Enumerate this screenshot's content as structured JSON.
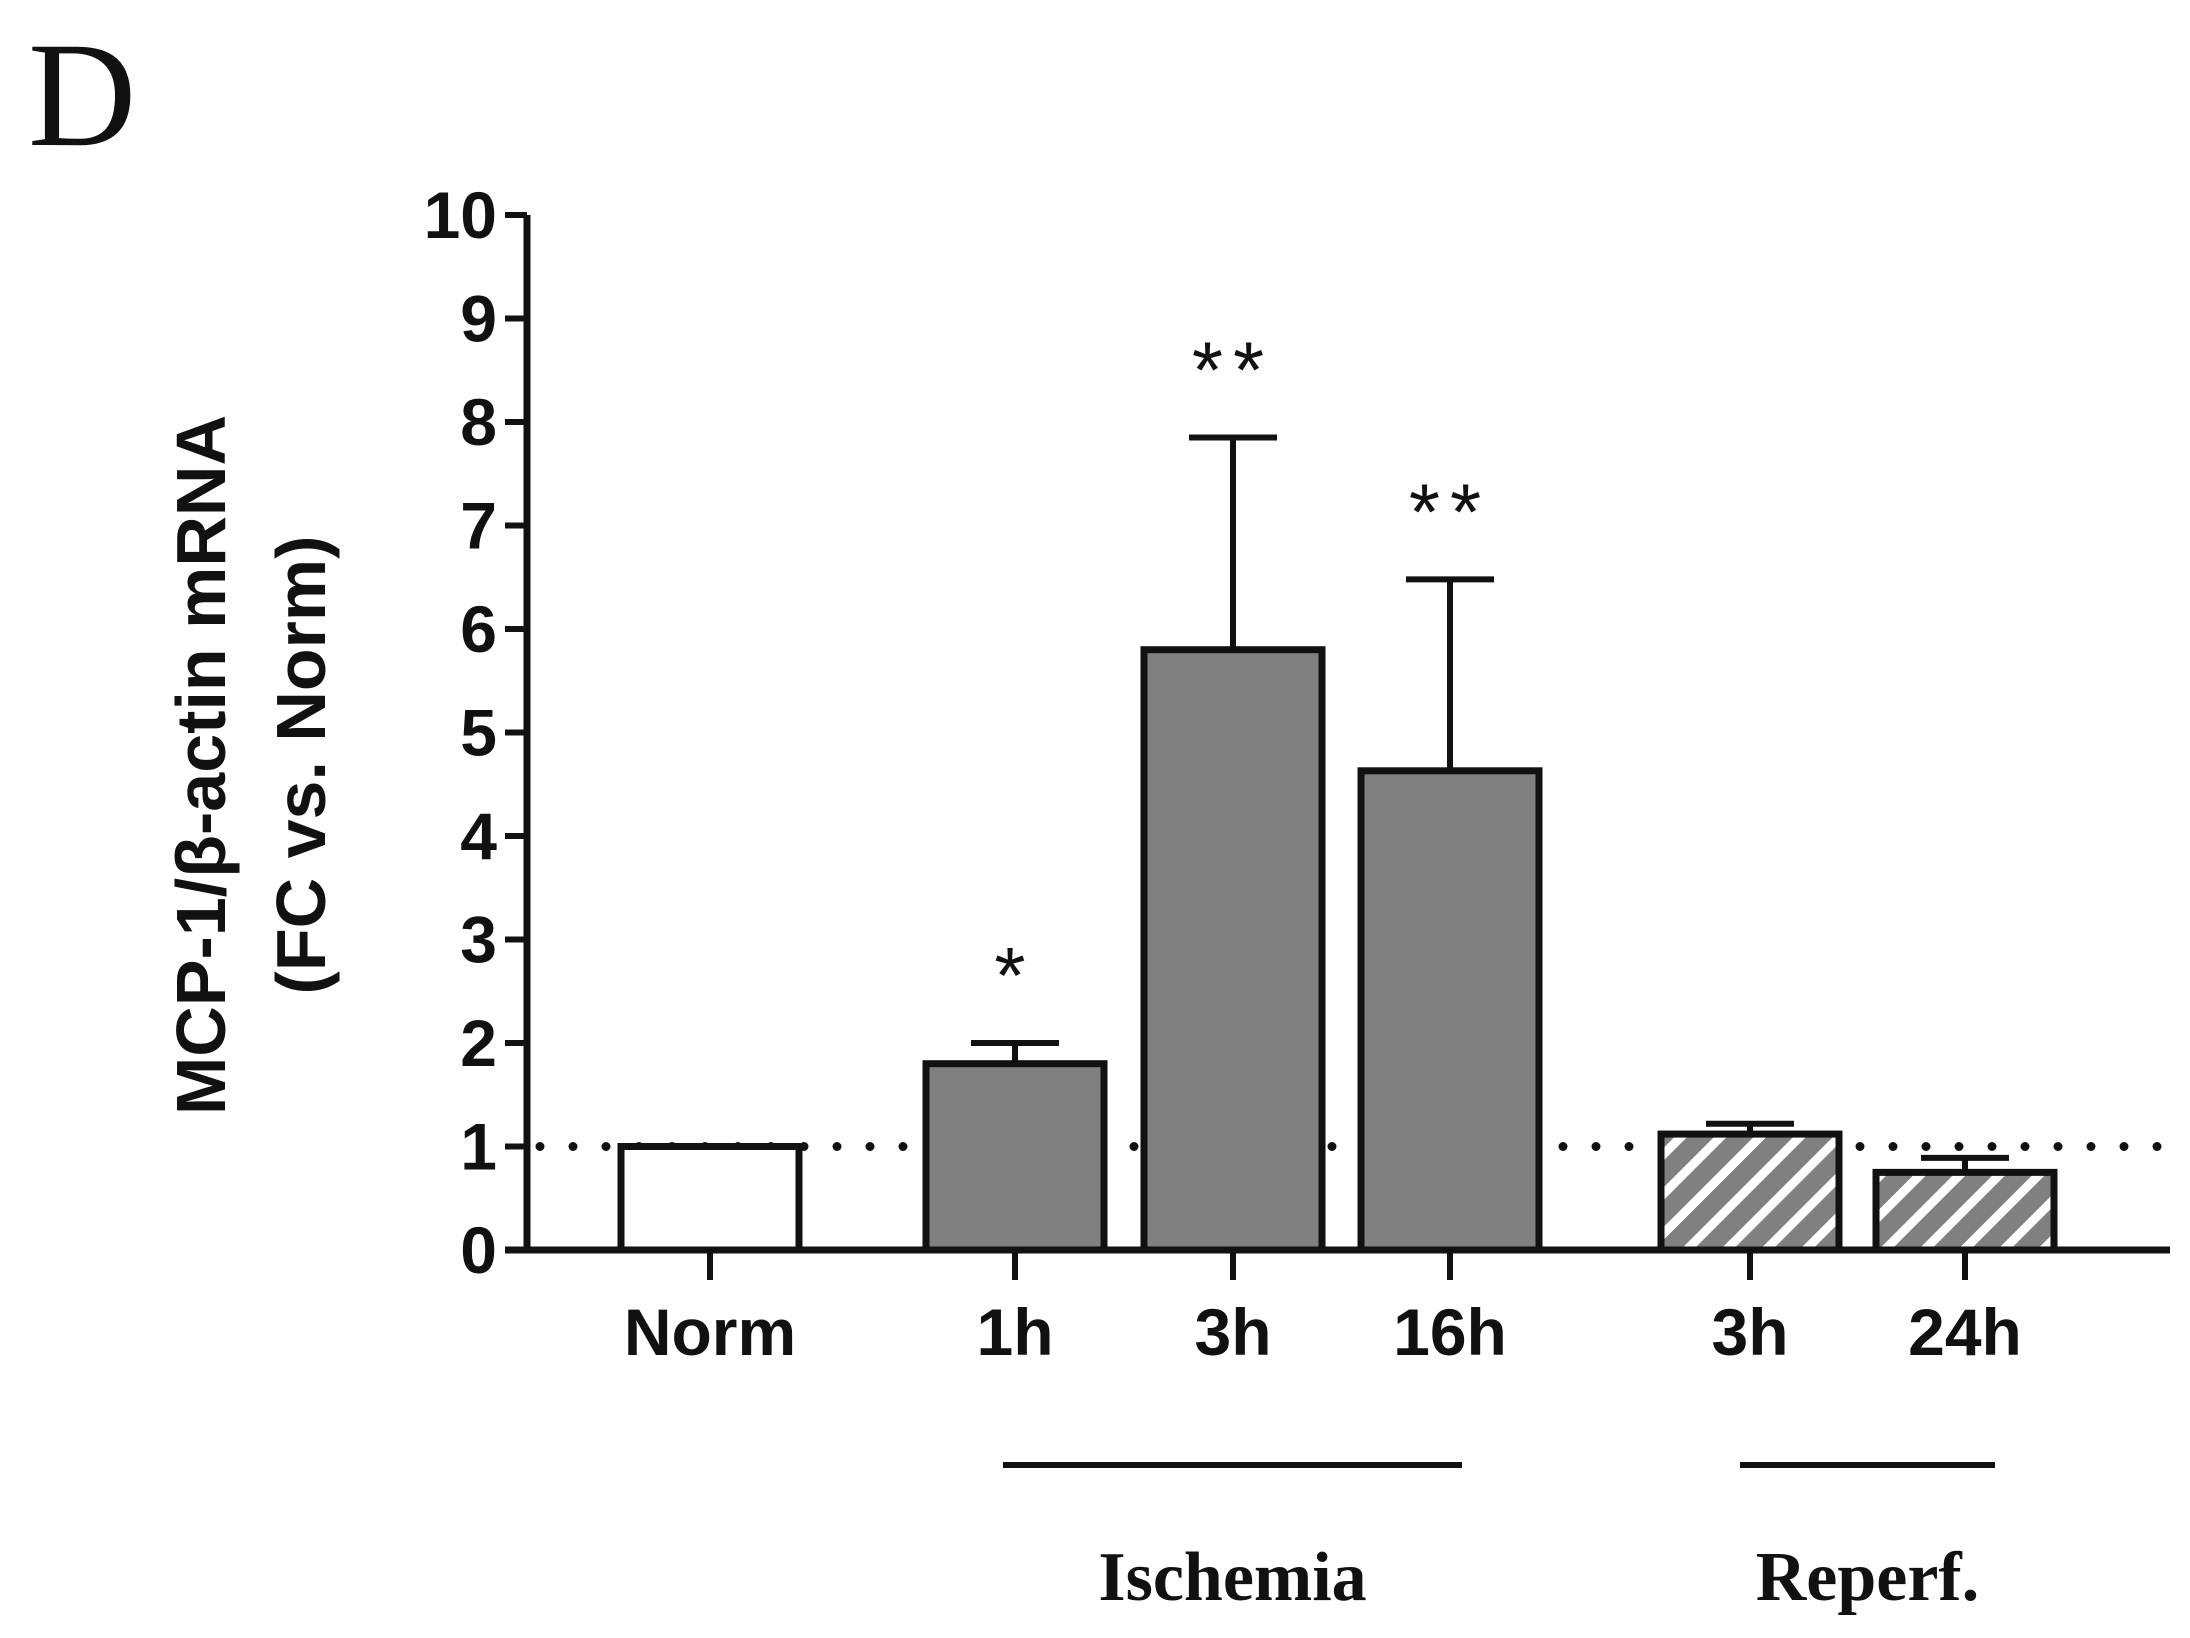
{
  "panel_label": "D",
  "chart_data": {
    "type": "bar",
    "title": "",
    "ylabel_line1": "MCP-1/β-actin mRNA",
    "ylabel_line2": "(FC vs. Norm)",
    "xlabel": "",
    "ylim": [
      0,
      10
    ],
    "yticks": [
      0,
      1,
      2,
      3,
      4,
      5,
      6,
      7,
      8,
      9,
      10
    ],
    "reference_line": 1,
    "categories": [
      "Norm",
      "1h",
      "3h",
      "16h",
      "3h",
      "24h"
    ],
    "values": [
      1.0,
      1.8,
      5.8,
      4.63,
      1.12,
      0.75
    ],
    "errors": [
      0.0,
      0.2,
      2.05,
      1.85,
      0.1,
      0.14
    ],
    "significance": [
      "",
      "*",
      "**",
      "**",
      "",
      ""
    ],
    "fills": [
      "white",
      "solid",
      "solid",
      "solid",
      "hatched",
      "hatched"
    ],
    "groups": [
      {
        "label": "Ischemia",
        "categories": [
          "1h",
          "3h",
          "16h"
        ]
      },
      {
        "label": "Reperf.",
        "categories": [
          "3h",
          "24h"
        ]
      }
    ],
    "colors": {
      "bar_solid": "#808080",
      "bar_hatch": "#808080",
      "bar_white": "#ffffff",
      "stroke": "#111111"
    }
  }
}
